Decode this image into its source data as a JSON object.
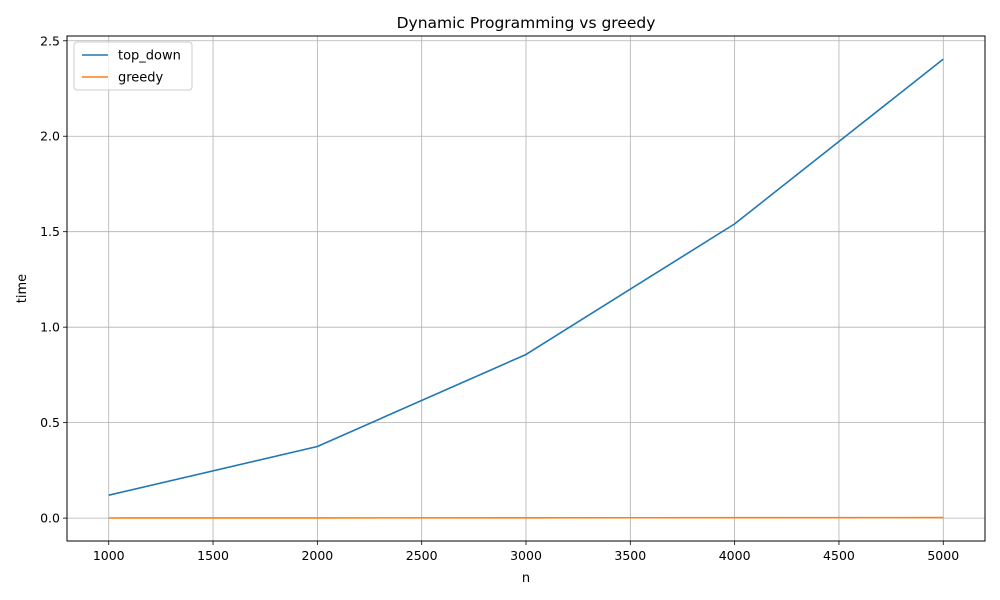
{
  "chart_data": {
    "type": "line",
    "title": "Dynamic Programming vs greedy",
    "xlabel": "n",
    "ylabel": "time",
    "x": [
      1000,
      2000,
      3000,
      4000,
      5000
    ],
    "series": [
      {
        "name": "top_down",
        "values": [
          0.12,
          0.375,
          0.857,
          1.541,
          2.404
        ],
        "color": "#1f77b4"
      },
      {
        "name": "greedy",
        "values": [
          0.0005,
          0.001,
          0.0015,
          0.002,
          0.0025
        ],
        "color": "#ff7f0e"
      }
    ],
    "xlim": [
      800,
      5200
    ],
    "ylim": [
      -0.12,
      2.525
    ],
    "xticks": [
      1000,
      1500,
      2000,
      2500,
      3000,
      3500,
      4000,
      4500,
      5000
    ],
    "xtick_labels": [
      "1000",
      "1500",
      "2000",
      "2500",
      "3000",
      "3500",
      "4000",
      "4500",
      "5000"
    ],
    "yticks": [
      0.0,
      0.5,
      1.0,
      1.5,
      2.0,
      2.5
    ],
    "ytick_labels": [
      "0.0",
      "0.5",
      "1.0",
      "1.5",
      "2.0",
      "2.5"
    ],
    "grid": true,
    "legend_position": "upper-left"
  }
}
